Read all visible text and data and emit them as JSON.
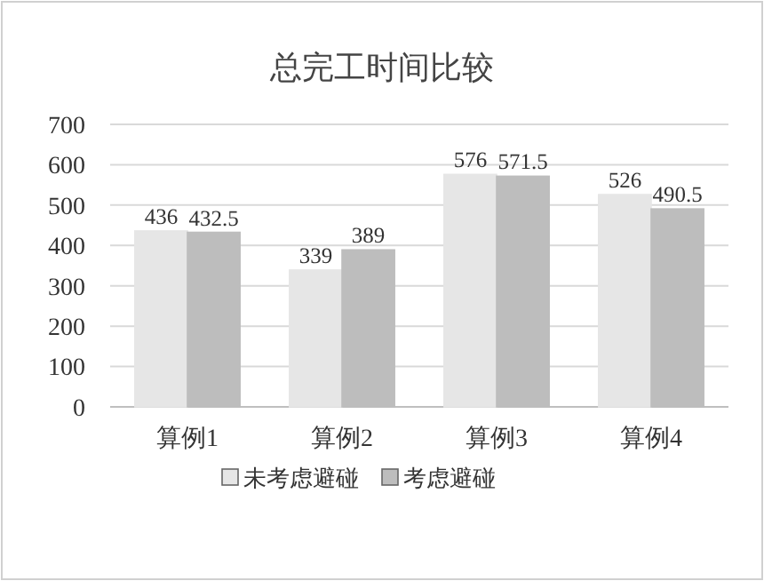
{
  "chart_data": {
    "type": "bar",
    "title": "总完工时间比较",
    "categories": [
      "算例1",
      "算例2",
      "算例3",
      "算例4"
    ],
    "series": [
      {
        "name": "未考虑避碰",
        "color": "#e6e6e6",
        "values": [
          436,
          339,
          576,
          526
        ]
      },
      {
        "name": "考虑避碰",
        "color": "#bdbdbd",
        "values": [
          432.5,
          389,
          571.5,
          490.5
        ]
      }
    ],
    "ylim": [
      0,
      700
    ],
    "yticks": [
      0,
      100,
      200,
      300,
      400,
      500,
      600,
      700
    ],
    "grid": "y",
    "legend": "bottom",
    "data_labels": true
  }
}
